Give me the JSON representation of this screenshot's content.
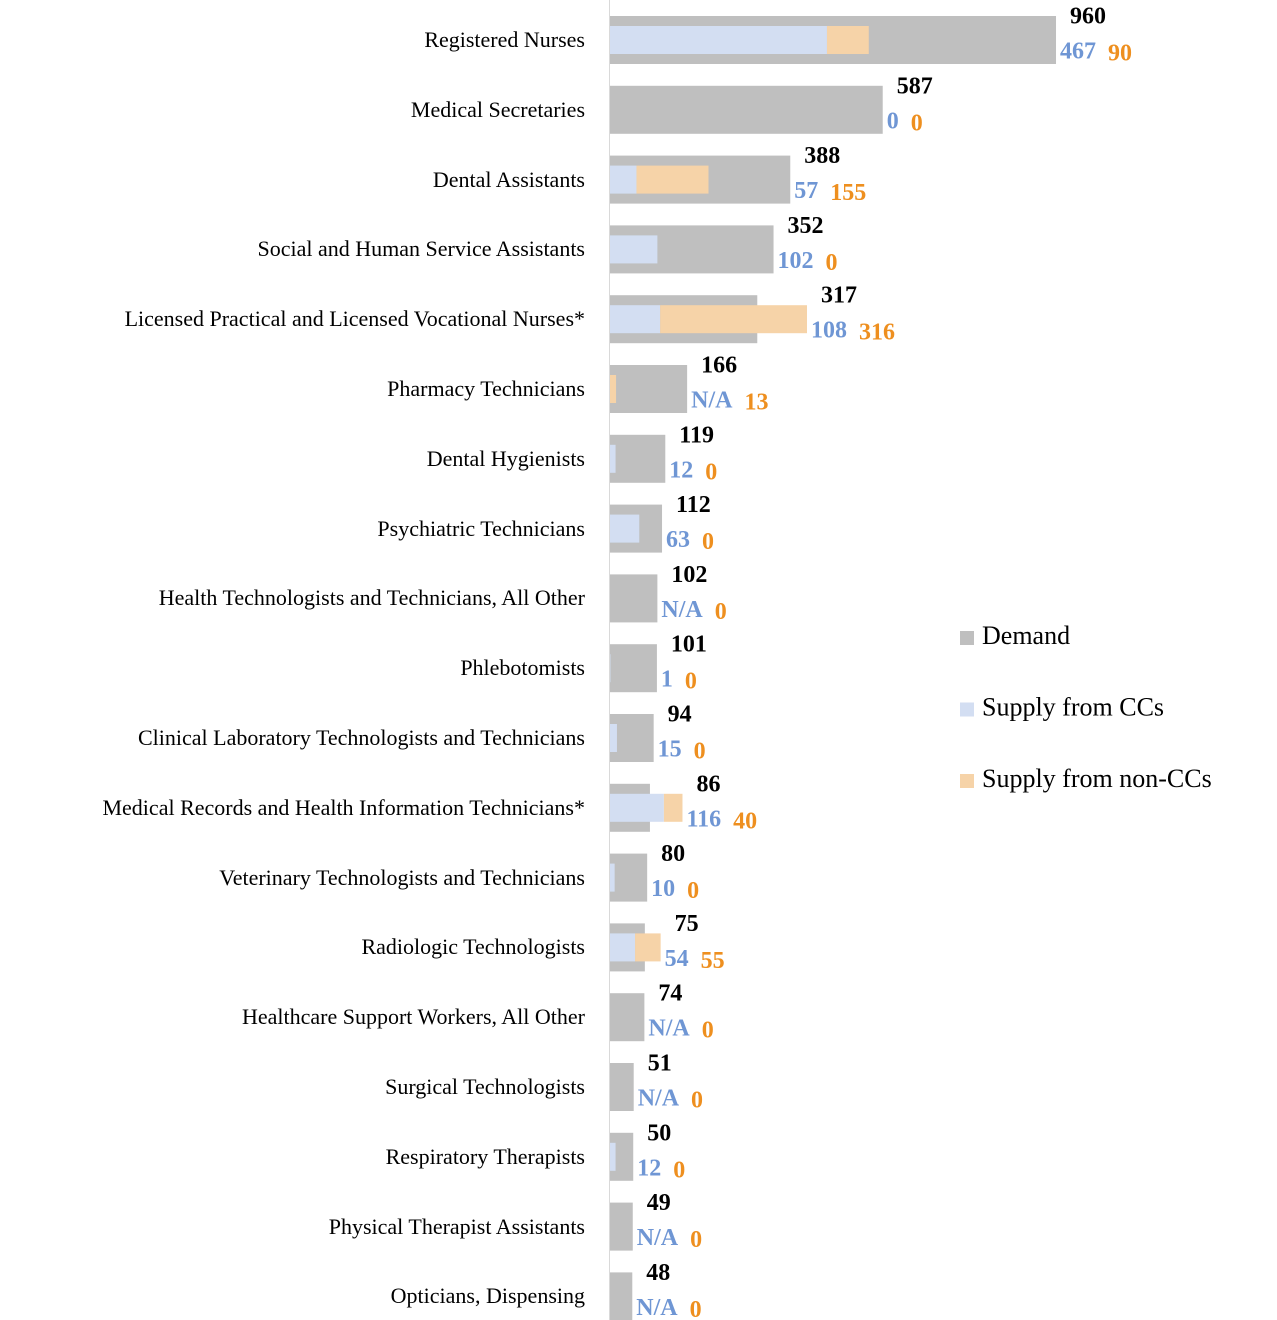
{
  "chart_data": {
    "type": "bar",
    "categories": [
      "Registered Nurses",
      "Medical Secretaries",
      "Dental Assistants",
      "Social and Human Service Assistants",
      "Licensed Practical and Licensed Vocational Nurses*",
      "Pharmacy Technicians",
      "Dental Hygienists",
      "Psychiatric Technicians",
      "Health Technologists and Technicians, All Other",
      "Phlebotomists",
      "Clinical Laboratory Technologists and Technicians",
      "Medical Records and Health Information Technicians*",
      "Veterinary Technologists and Technicians",
      "Radiologic Technologists",
      "Healthcare Support Workers, All Other",
      "Surgical Technologists",
      "Respiratory Therapists",
      "Physical Therapist Assistants",
      "Opticians, Dispensing"
    ],
    "series": [
      {
        "name": "Demand",
        "color": "#bfbfbf",
        "label_color": "#000000",
        "values": [
          960,
          587,
          388,
          352,
          317,
          166,
          119,
          112,
          102,
          101,
          94,
          86,
          80,
          75,
          74,
          51,
          50,
          49,
          48
        ]
      },
      {
        "name": "Supply from CCs",
        "color": "#d3def2",
        "label_color": "#6f96d4",
        "values": [
          467,
          0,
          57,
          102,
          108,
          null,
          12,
          63,
          null,
          1,
          15,
          116,
          10,
          54,
          null,
          null,
          12,
          null,
          null
        ],
        "value_labels": [
          "467",
          "0",
          "57",
          "102",
          "108",
          "N/A",
          "12",
          "63",
          "N/A",
          "1",
          "15",
          "116",
          "10",
          "54",
          "N/A",
          "N/A",
          "12",
          "N/A",
          "N/A"
        ]
      },
      {
        "name": "Supply from non-CCs",
        "color": "#f6d3a8",
        "label_color": "#ee8f1f",
        "values": [
          90,
          0,
          155,
          0,
          316,
          13,
          0,
          0,
          0,
          0,
          0,
          40,
          0,
          55,
          0,
          0,
          0,
          0,
          0
        ]
      }
    ],
    "xlim": [
      0,
      1000
    ]
  }
}
